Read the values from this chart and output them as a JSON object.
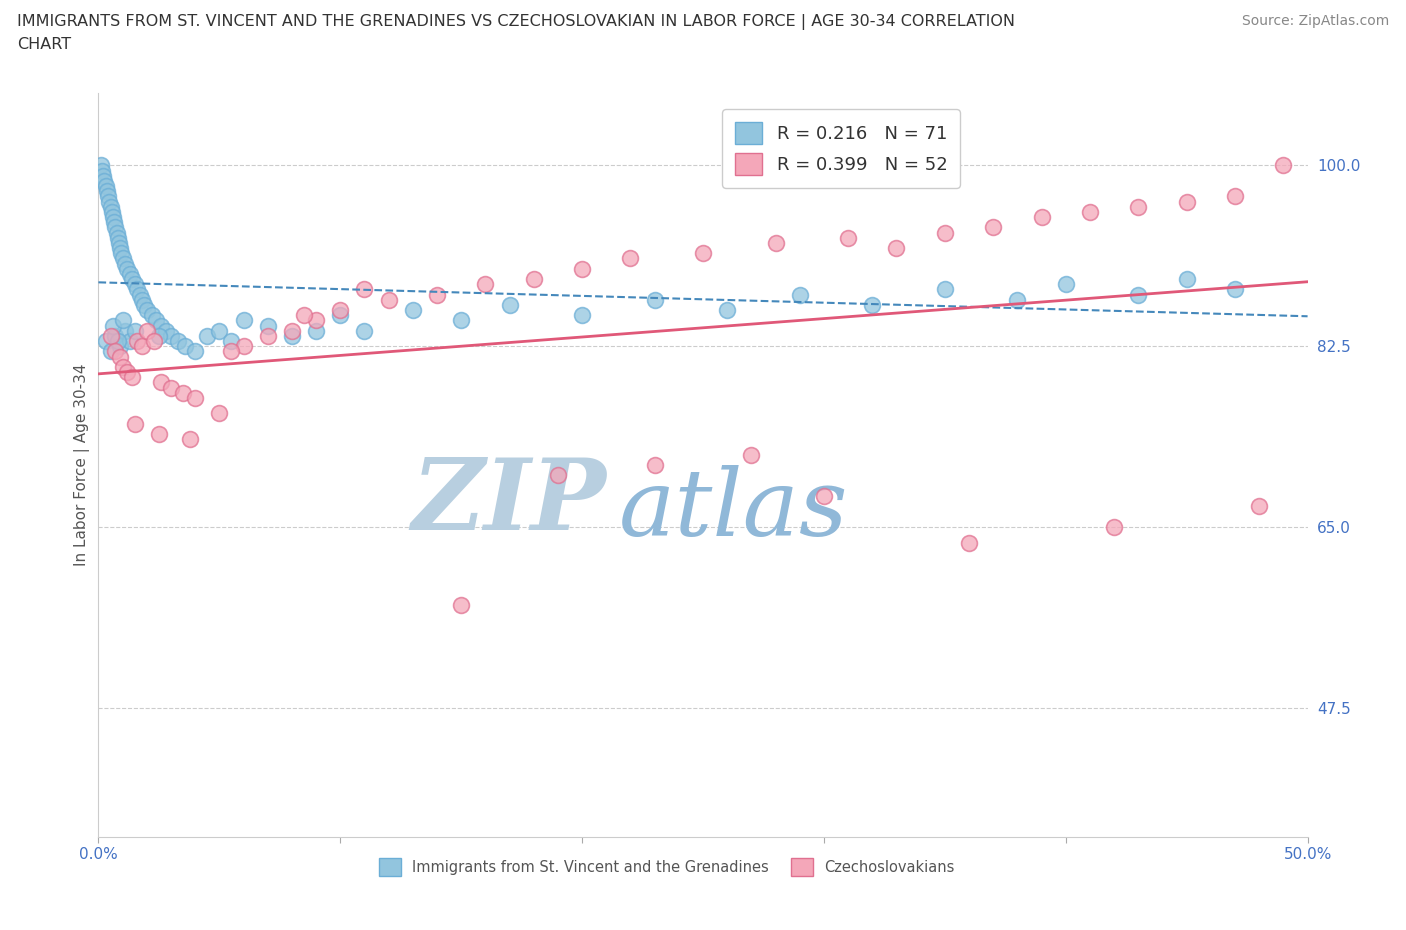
{
  "title_line1": "IMMIGRANTS FROM ST. VINCENT AND THE GRENADINES VS CZECHOSLOVAKIAN IN LABOR FORCE | AGE 30-34 CORRELATION",
  "title_line2": "CHART",
  "source_text": "Source: ZipAtlas.com",
  "ylabel": "In Labor Force | Age 30-34",
  "xlim": [
    0.0,
    50.0
  ],
  "ylim": [
    35.0,
    107.0
  ],
  "xticks": [
    0.0,
    10.0,
    20.0,
    30.0,
    40.0,
    50.0
  ],
  "xticklabels": [
    "0.0%",
    "",
    "",
    "",
    "",
    "50.0%"
  ],
  "ytick_positions": [
    47.5,
    65.0,
    82.5,
    100.0
  ],
  "yticklabels": [
    "47.5%",
    "65.0%",
    "82.5%",
    "100.0%"
  ],
  "blue_R": 0.216,
  "blue_N": 71,
  "pink_R": 0.399,
  "pink_N": 52,
  "blue_color": "#92c5de",
  "pink_color": "#f4a7b9",
  "blue_edge_color": "#6baed6",
  "pink_edge_color": "#e07090",
  "blue_line_color": "#4488bb",
  "pink_line_color": "#e05878",
  "watermark_zip": "ZIP",
  "watermark_atlas": "atlas",
  "watermark_color": "#d0dff0",
  "legend_label_blue": "Immigrants from St. Vincent and the Grenadines",
  "legend_label_pink": "Czechoslovakians",
  "blue_scatter_x": [
    0.1,
    0.15,
    0.2,
    0.25,
    0.3,
    0.35,
    0.4,
    0.45,
    0.5,
    0.55,
    0.6,
    0.65,
    0.7,
    0.75,
    0.8,
    0.85,
    0.9,
    0.95,
    1.0,
    1.1,
    1.2,
    1.3,
    1.4,
    1.5,
    1.6,
    1.7,
    1.8,
    1.9,
    2.0,
    2.2,
    2.4,
    2.6,
    2.8,
    3.0,
    3.3,
    3.6,
    4.0,
    4.5,
    5.0,
    5.5,
    6.0,
    7.0,
    8.0,
    9.0,
    10.0,
    11.0,
    13.0,
    15.0,
    17.0,
    20.0,
    23.0,
    26.0,
    29.0,
    32.0,
    35.0,
    38.0,
    40.0,
    43.0,
    45.0,
    47.0,
    0.3,
    0.5,
    0.7,
    0.9,
    1.1,
    1.3,
    0.6,
    0.8,
    1.0,
    1.5,
    2.5
  ],
  "blue_scatter_y": [
    100.0,
    99.5,
    99.0,
    98.5,
    98.0,
    97.5,
    97.0,
    96.5,
    96.0,
    95.5,
    95.0,
    94.5,
    94.0,
    93.5,
    93.0,
    92.5,
    92.0,
    91.5,
    91.0,
    90.5,
    90.0,
    89.5,
    89.0,
    88.5,
    88.0,
    87.5,
    87.0,
    86.5,
    86.0,
    85.5,
    85.0,
    84.5,
    84.0,
    83.5,
    83.0,
    82.5,
    82.0,
    83.5,
    84.0,
    83.0,
    85.0,
    84.5,
    83.5,
    84.0,
    85.5,
    84.0,
    86.0,
    85.0,
    86.5,
    85.5,
    87.0,
    86.0,
    87.5,
    86.5,
    88.0,
    87.0,
    88.5,
    87.5,
    89.0,
    88.0,
    83.0,
    82.0,
    83.5,
    82.5,
    84.0,
    83.0,
    84.5,
    83.0,
    85.0,
    84.0,
    83.5
  ],
  "pink_scatter_x": [
    0.5,
    0.7,
    0.9,
    1.0,
    1.2,
    1.4,
    1.6,
    1.8,
    2.0,
    2.3,
    2.6,
    3.0,
    3.5,
    4.0,
    5.0,
    6.0,
    7.0,
    8.0,
    9.0,
    10.0,
    12.0,
    14.0,
    16.0,
    18.0,
    20.0,
    22.0,
    25.0,
    28.0,
    31.0,
    33.0,
    35.0,
    37.0,
    39.0,
    41.0,
    43.0,
    45.0,
    47.0,
    49.0,
    1.5,
    2.5,
    3.8,
    5.5,
    8.5,
    11.0,
    15.0,
    19.0,
    23.0,
    27.0,
    30.0,
    36.0,
    42.0,
    48.0
  ],
  "pink_scatter_y": [
    83.5,
    82.0,
    81.5,
    80.5,
    80.0,
    79.5,
    83.0,
    82.5,
    84.0,
    83.0,
    79.0,
    78.5,
    78.0,
    77.5,
    76.0,
    82.5,
    83.5,
    84.0,
    85.0,
    86.0,
    87.0,
    87.5,
    88.5,
    89.0,
    90.0,
    91.0,
    91.5,
    92.5,
    93.0,
    92.0,
    93.5,
    94.0,
    95.0,
    95.5,
    96.0,
    96.5,
    97.0,
    100.0,
    75.0,
    74.0,
    73.5,
    82.0,
    85.5,
    88.0,
    57.5,
    70.0,
    71.0,
    72.0,
    68.0,
    63.5,
    65.0,
    67.0
  ]
}
